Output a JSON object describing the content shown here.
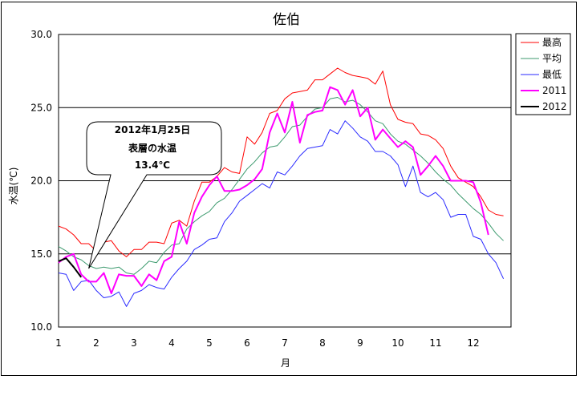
{
  "chart_data": {
    "type": "line",
    "title": "佐伯",
    "xlabel": "月",
    "ylabel": "水温(℃)",
    "xlim": [
      1,
      13
    ],
    "ylim": [
      10,
      30
    ],
    "x_ticks": [
      1,
      2,
      3,
      4,
      5,
      6,
      7,
      8,
      9,
      10,
      11,
      12
    ],
    "y_ticks": [
      "10.0",
      "15.0",
      "20.0",
      "25.0",
      "30.0"
    ],
    "y_tick_values": [
      10,
      15,
      20,
      25,
      30
    ],
    "grid": "horizontal",
    "legend_position": "right",
    "annotation": [
      "2012年1月25日",
      "表層の水温",
      "13.4℃"
    ],
    "annotation_point": [
      1.8,
      14.0
    ],
    "series": [
      {
        "name": "最高",
        "color": "#ff0000",
        "width": 1,
        "x": [
          1.0,
          1.2,
          1.4,
          1.6,
          1.8,
          2.0,
          2.2,
          2.4,
          2.6,
          2.8,
          3.0,
          3.2,
          3.4,
          3.6,
          3.8,
          4.0,
          4.2,
          4.4,
          4.6,
          4.8,
          5.0,
          5.2,
          5.4,
          5.6,
          5.8,
          6.0,
          6.2,
          6.4,
          6.6,
          6.8,
          7.0,
          7.2,
          7.4,
          7.6,
          7.8,
          8.0,
          8.2,
          8.4,
          8.6,
          8.8,
          9.0,
          9.2,
          9.4,
          9.6,
          9.8,
          10.0,
          10.2,
          10.4,
          10.6,
          10.8,
          11.0,
          11.2,
          11.4,
          11.6,
          11.8,
          12.0,
          12.2,
          12.4,
          12.6,
          12.8
        ],
        "values": [
          16.9,
          16.7,
          16.3,
          15.7,
          15.7,
          15.2,
          15.8,
          15.9,
          15.2,
          14.8,
          15.3,
          15.3,
          15.8,
          15.8,
          15.7,
          17.1,
          17.3,
          16.9,
          18.6,
          19.9,
          19.9,
          20.3,
          20.9,
          20.6,
          20.5,
          23.0,
          22.5,
          23.3,
          24.6,
          24.8,
          25.6,
          26.0,
          26.1,
          26.2,
          26.9,
          26.9,
          27.3,
          27.7,
          27.4,
          27.2,
          27.1,
          27.0,
          26.6,
          27.5,
          25.2,
          24.2,
          24.0,
          23.9,
          23.2,
          23.1,
          22.8,
          22.2,
          21.0,
          20.2,
          19.9,
          19.6,
          18.9,
          18.0,
          17.7,
          17.6
        ]
      },
      {
        "name": "平均",
        "color": "#3c9a6e",
        "width": 1,
        "x": [
          1.0,
          1.2,
          1.4,
          1.6,
          1.8,
          2.0,
          2.2,
          2.4,
          2.6,
          2.8,
          3.0,
          3.2,
          3.4,
          3.6,
          3.8,
          4.0,
          4.2,
          4.4,
          4.6,
          4.8,
          5.0,
          5.2,
          5.4,
          5.6,
          5.8,
          6.0,
          6.2,
          6.4,
          6.6,
          6.8,
          7.0,
          7.2,
          7.4,
          7.6,
          7.8,
          8.0,
          8.2,
          8.4,
          8.6,
          8.8,
          9.0,
          9.2,
          9.4,
          9.6,
          9.8,
          10.0,
          10.2,
          10.4,
          10.6,
          10.8,
          11.0,
          11.2,
          11.4,
          11.6,
          11.8,
          12.0,
          12.2,
          12.4,
          12.6,
          12.8
        ],
        "values": [
          15.5,
          15.2,
          14.8,
          14.6,
          14.2,
          14.0,
          14.1,
          14.0,
          14.1,
          13.7,
          13.6,
          14.0,
          14.5,
          14.4,
          15.1,
          15.6,
          15.7,
          16.7,
          17.2,
          17.6,
          17.9,
          18.5,
          18.8,
          19.4,
          20.1,
          20.8,
          21.3,
          21.9,
          22.3,
          22.4,
          23.0,
          23.7,
          23.8,
          24.4,
          24.9,
          25.0,
          25.6,
          25.7,
          25.4,
          25.5,
          25.2,
          24.7,
          24.1,
          23.9,
          23.2,
          22.7,
          22.5,
          22.1,
          21.7,
          21.2,
          20.6,
          20.1,
          19.7,
          19.1,
          18.6,
          18.1,
          17.7,
          17.1,
          16.4,
          15.9
        ]
      },
      {
        "name": "最低",
        "color": "#2a2aff",
        "width": 1,
        "x": [
          1.0,
          1.2,
          1.4,
          1.6,
          1.8,
          2.0,
          2.2,
          2.4,
          2.6,
          2.8,
          3.0,
          3.2,
          3.4,
          3.6,
          3.8,
          4.0,
          4.2,
          4.4,
          4.6,
          4.8,
          5.0,
          5.2,
          5.4,
          5.6,
          5.8,
          6.0,
          6.2,
          6.4,
          6.6,
          6.8,
          7.0,
          7.2,
          7.4,
          7.6,
          7.8,
          8.0,
          8.2,
          8.4,
          8.6,
          8.8,
          9.0,
          9.2,
          9.4,
          9.6,
          9.8,
          10.0,
          10.2,
          10.4,
          10.6,
          10.8,
          11.0,
          11.2,
          11.4,
          11.6,
          11.8,
          12.0,
          12.2,
          12.4,
          12.6,
          12.8
        ],
        "values": [
          13.7,
          13.6,
          12.5,
          13.1,
          13.2,
          12.5,
          12.0,
          12.1,
          12.4,
          11.4,
          12.3,
          12.5,
          12.9,
          12.7,
          12.6,
          13.4,
          14.0,
          14.5,
          15.3,
          15.6,
          16.0,
          16.1,
          17.2,
          17.8,
          18.6,
          19.0,
          19.4,
          19.8,
          19.5,
          20.6,
          20.4,
          21.0,
          21.7,
          22.2,
          22.3,
          22.4,
          23.5,
          23.2,
          24.1,
          23.6,
          23.0,
          22.7,
          22.0,
          22.0,
          21.7,
          21.1,
          19.6,
          21.0,
          19.2,
          18.9,
          19.2,
          18.7,
          17.5,
          17.7,
          17.7,
          16.2,
          16.0,
          15.0,
          14.4,
          13.3
        ]
      },
      {
        "name": "2011",
        "color": "#ff00ff",
        "width": 2,
        "x": [
          1.0,
          1.2,
          1.4,
          1.6,
          1.8,
          2.0,
          2.2,
          2.4,
          2.6,
          2.8,
          3.0,
          3.2,
          3.4,
          3.6,
          3.8,
          4.0,
          4.2,
          4.4,
          4.6,
          4.8,
          5.0,
          5.2,
          5.4,
          5.6,
          5.8,
          6.0,
          6.2,
          6.4,
          6.6,
          6.8,
          7.0,
          7.2,
          7.4,
          7.6,
          7.8,
          8.0,
          8.2,
          8.4,
          8.6,
          8.8,
          9.0,
          9.2,
          9.4,
          9.6,
          9.8,
          10.0,
          10.2,
          10.4,
          10.6,
          10.8,
          11.0,
          11.2,
          11.4,
          11.6,
          11.8,
          12.0,
          12.2,
          12.4
        ],
        "values": [
          14.4,
          14.8,
          15.0,
          13.6,
          13.1,
          13.1,
          13.7,
          12.3,
          13.6,
          13.5,
          13.5,
          12.8,
          13.6,
          13.2,
          14.5,
          14.8,
          17.2,
          15.7,
          17.8,
          18.9,
          19.7,
          20.3,
          19.3,
          19.3,
          19.4,
          19.7,
          20.1,
          20.8,
          23.3,
          24.6,
          23.3,
          25.4,
          22.6,
          24.5,
          24.7,
          24.8,
          26.4,
          26.2,
          25.2,
          26.2,
          24.4,
          25.0,
          22.8,
          23.5,
          22.9,
          22.3,
          22.7,
          22.3,
          20.4,
          21.0,
          21.7,
          21.0,
          20.0,
          20.0,
          20.0,
          19.9,
          18.5,
          16.3
        ]
      },
      {
        "name": "2012",
        "color": "#000000",
        "width": 2,
        "x": [
          1.0,
          1.2,
          1.4,
          1.6
        ],
        "values": [
          14.5,
          14.7,
          14.1,
          13.4
        ]
      }
    ]
  }
}
